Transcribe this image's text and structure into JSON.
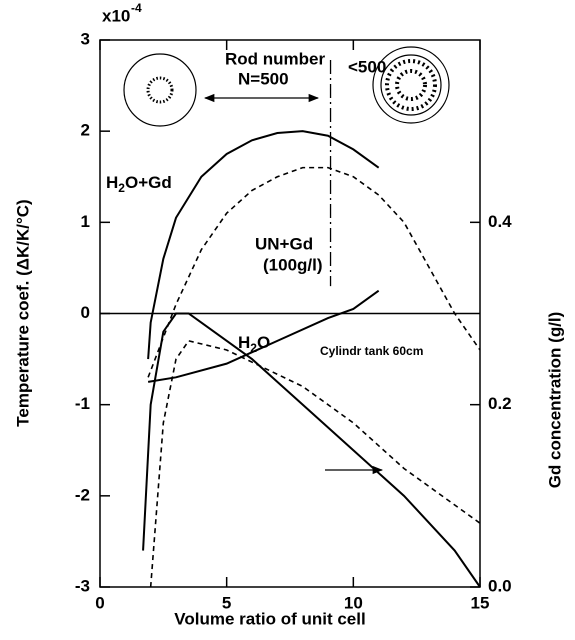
{
  "chart_data": {
    "type": "line",
    "xlabel": "Volume ratio of unit cell",
    "ylabel": "Temperature coef.  (ΔK/K/°C)",
    "y2label": "Gd concentration  (g/l)",
    "y_multiplier": "x10",
    "y_exponent": "-4",
    "xlim": [
      0,
      15
    ],
    "xticks": [
      0,
      5,
      10,
      15
    ],
    "ylim": [
      -3,
      3
    ],
    "yticks": [
      -3,
      -2,
      -1,
      0,
      1,
      2,
      3
    ],
    "y2lim": [
      0,
      0.6
    ],
    "y2ticks": [
      {
        "value": 0,
        "label": "0.0"
      },
      {
        "value": 0.2,
        "label": "0.2"
      },
      {
        "value": 0.4,
        "label": "0.4"
      }
    ],
    "vline_x": 9.1,
    "series": [
      {
        "style": "solid",
        "color": "#000000",
        "x": [
          1.9,
          2,
          2.5,
          3,
          4,
          5,
          6,
          7,
          8,
          9,
          10,
          11
        ],
        "values": [
          -0.5,
          -0.1,
          0.6,
          1.05,
          1.5,
          1.75,
          1.9,
          1.98,
          2.0,
          1.95,
          1.8,
          1.6
        ]
      },
      {
        "style": "dashed",
        "color": "#000000",
        "x": [
          1.9,
          3,
          4,
          5,
          6,
          7,
          8,
          9,
          10,
          11,
          12,
          13,
          14,
          15
        ],
        "values": [
          -0.7,
          0.1,
          0.7,
          1.1,
          1.35,
          1.5,
          1.6,
          1.6,
          1.5,
          1.3,
          1.0,
          0.5,
          0.0,
          -0.4
        ]
      },
      {
        "style": "solid",
        "color": "#000000",
        "x": [
          1.9,
          3,
          5,
          7,
          9,
          10,
          11
        ],
        "values": [
          -0.75,
          -0.7,
          -0.55,
          -0.3,
          -0.05,
          0.05,
          0.25
        ]
      },
      {
        "style": "solid",
        "color": "#000000",
        "axis": "y2",
        "x": [
          1.7,
          2,
          2.5,
          3,
          3.5,
          4,
          6,
          8,
          10,
          12,
          14,
          15
        ],
        "values": [
          0.04,
          0.2,
          0.28,
          0.3,
          0.3,
          0.29,
          0.25,
          0.2,
          0.15,
          0.1,
          0.04,
          0.0
        ]
      },
      {
        "style": "dashed",
        "color": "#000000",
        "axis": "y2",
        "x": [
          2,
          2.5,
          3,
          3.5,
          5,
          8,
          10,
          12,
          15
        ],
        "values": [
          0.0,
          0.18,
          0.25,
          0.27,
          0.26,
          0.22,
          0.18,
          0.13,
          0.07
        ]
      }
    ],
    "annotations": {
      "rod_number": "Rod number",
      "n500": "N=500",
      "lt500": "<500",
      "h2o_gd": [
        "H",
        "2",
        "O+Gd"
      ],
      "un_gd": "UN+Gd",
      "un_gd_conc": "(100g/l)",
      "h2o": [
        "H",
        "2",
        "O"
      ],
      "tank": "Cylindr tank   60cm"
    }
  }
}
